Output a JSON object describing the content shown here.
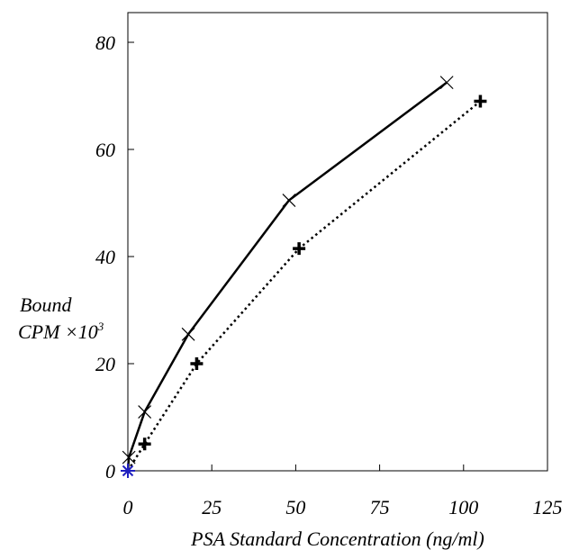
{
  "chart_data": {
    "type": "line",
    "xlabel": "PSA Standard Concentration (ng/ml)",
    "ylabel_line1": "Bound",
    "ylabel_line2": "CPM ×10",
    "ylabel_sup": "3",
    "xlim": [
      0,
      125
    ],
    "ylim": [
      0,
      80
    ],
    "xticks": [
      0,
      25,
      50,
      75,
      100,
      125
    ],
    "yticks": [
      0,
      20,
      40,
      60,
      80
    ],
    "grid": false,
    "series": [
      {
        "line_style": "solid",
        "marker": "x",
        "color": "#000000",
        "x": [
          0,
          0.3,
          5,
          18,
          48,
          95
        ],
        "y": [
          0,
          2.5,
          11,
          25.5,
          50.5,
          72.5
        ]
      },
      {
        "line_style": "dotted",
        "marker": "plus",
        "color": "#000000",
        "x": [
          0,
          5,
          20.5,
          51,
          105
        ],
        "y": [
          0,
          5,
          20,
          41.5,
          69
        ]
      }
    ],
    "origin_marker": {
      "x": 0,
      "y": 0,
      "color": "#1f1fbf",
      "marker": "asterisk"
    }
  }
}
